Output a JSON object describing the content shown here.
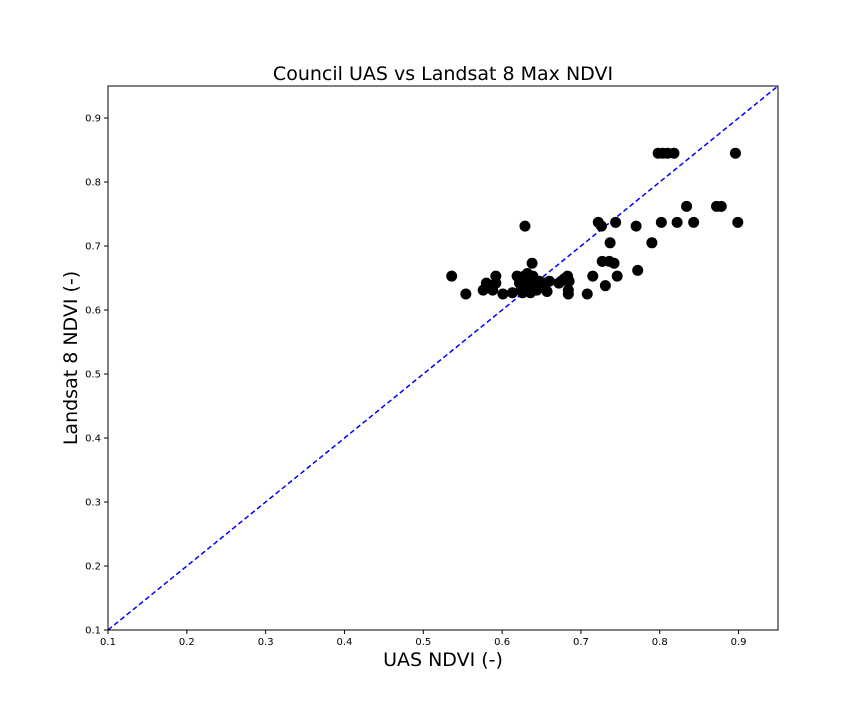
{
  "chart_data": {
    "type": "scatter",
    "title": "Council UAS vs Landsat 8 Max NDVI",
    "xlabel": "UAS NDVI (-)",
    "ylabel": "Landsat 8 NDVI (-)",
    "xlim": [
      0.1,
      0.95
    ],
    "ylim": [
      0.1,
      0.95
    ],
    "xticks": [
      "0.1",
      "0.2",
      "0.3",
      "0.4",
      "0.5",
      "0.6",
      "0.7",
      "0.8",
      "0.9"
    ],
    "yticks": [
      "0.1",
      "0.2",
      "0.3",
      "0.4",
      "0.5",
      "0.6",
      "0.7",
      "0.8",
      "0.9"
    ],
    "grid": false,
    "series": [
      {
        "marker_color": "#000000",
        "points": [
          [
            0.536,
            0.653
          ],
          [
            0.554,
            0.625
          ],
          [
            0.576,
            0.631
          ],
          [
            0.58,
            0.642
          ],
          [
            0.585,
            0.636
          ],
          [
            0.588,
            0.631
          ],
          [
            0.592,
            0.653
          ],
          [
            0.592,
            0.642
          ],
          [
            0.601,
            0.625
          ],
          [
            0.613,
            0.627
          ],
          [
            0.619,
            0.653
          ],
          [
            0.622,
            0.642
          ],
          [
            0.624,
            0.631
          ],
          [
            0.626,
            0.627
          ],
          [
            0.628,
            0.653
          ],
          [
            0.629,
            0.731
          ],
          [
            0.63,
            0.638
          ],
          [
            0.632,
            0.657
          ],
          [
            0.634,
            0.645
          ],
          [
            0.636,
            0.627
          ],
          [
            0.638,
            0.673
          ],
          [
            0.639,
            0.653
          ],
          [
            0.641,
            0.642
          ],
          [
            0.644,
            0.631
          ],
          [
            0.647,
            0.645
          ],
          [
            0.651,
            0.638
          ],
          [
            0.654,
            0.642
          ],
          [
            0.657,
            0.629
          ],
          [
            0.66,
            0.645
          ],
          [
            0.672,
            0.642
          ],
          [
            0.675,
            0.645
          ],
          [
            0.679,
            0.649
          ],
          [
            0.683,
            0.653
          ],
          [
            0.684,
            0.631
          ],
          [
            0.684,
            0.625
          ],
          [
            0.685,
            0.645
          ],
          [
            0.708,
            0.625
          ],
          [
            0.715,
            0.653
          ],
          [
            0.722,
            0.737
          ],
          [
            0.726,
            0.731
          ],
          [
            0.727,
            0.676
          ],
          [
            0.731,
            0.638
          ],
          [
            0.736,
            0.676
          ],
          [
            0.737,
            0.705
          ],
          [
            0.742,
            0.673
          ],
          [
            0.744,
            0.737
          ],
          [
            0.746,
            0.653
          ],
          [
            0.77,
            0.731
          ],
          [
            0.772,
            0.662
          ],
          [
            0.79,
            0.705
          ],
          [
            0.798,
            0.845
          ],
          [
            0.804,
            0.845
          ],
          [
            0.81,
            0.845
          ],
          [
            0.818,
            0.845
          ],
          [
            0.802,
            0.737
          ],
          [
            0.822,
            0.737
          ],
          [
            0.834,
            0.762
          ],
          [
            0.843,
            0.737
          ],
          [
            0.872,
            0.762
          ],
          [
            0.878,
            0.762
          ],
          [
            0.896,
            0.845
          ],
          [
            0.899,
            0.737
          ]
        ]
      }
    ],
    "reference_line": {
      "type": "1:1",
      "color": "#0000ff",
      "style": "dashed",
      "from": [
        0.1,
        0.1
      ],
      "to": [
        0.95,
        0.95
      ]
    }
  }
}
